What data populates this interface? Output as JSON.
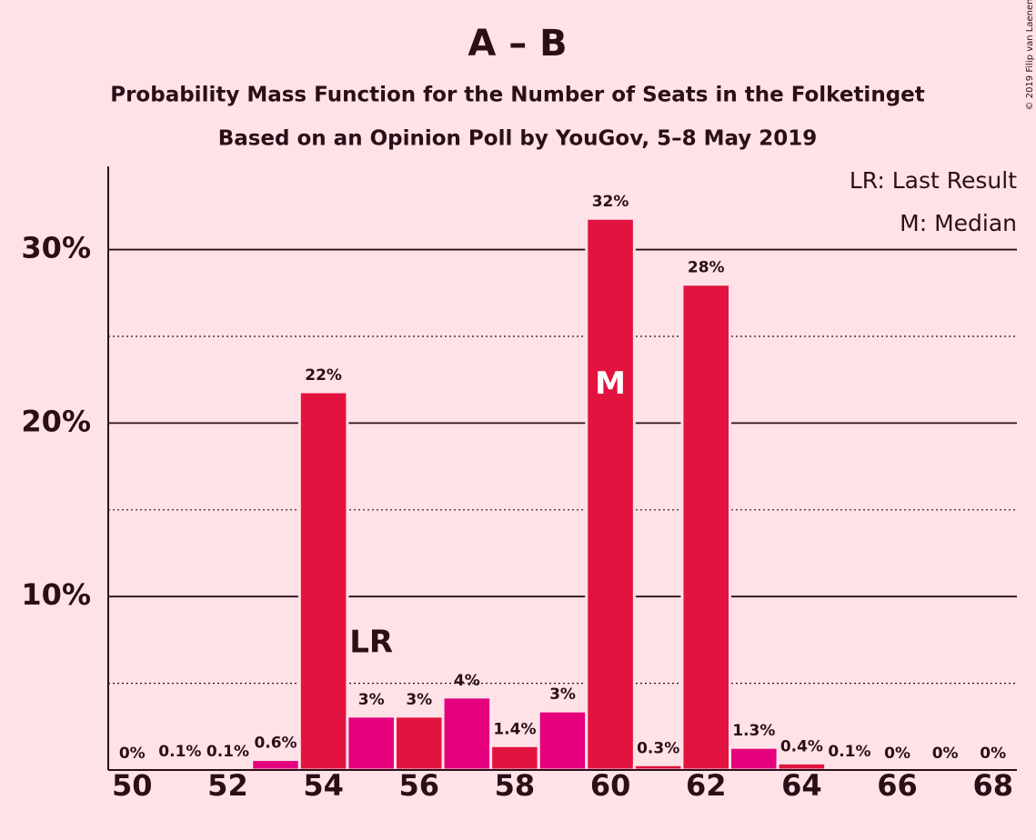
{
  "chart_data": {
    "type": "bar",
    "title": "A – B",
    "subtitle": "Probability Mass Function for the Number of Seats in the Folketinget",
    "subtitle2": "Based on an Opinion Poll by YouGov, 5–8 May 2019",
    "copyright": "© 2019 Filip van Laenen",
    "x": [
      50,
      51,
      52,
      53,
      54,
      55,
      56,
      57,
      58,
      59,
      60,
      61,
      62,
      63,
      64,
      65,
      66,
      67,
      68
    ],
    "values": [
      0,
      0.1,
      0.1,
      0.6,
      21.8,
      3.1,
      3.1,
      4.2,
      1.4,
      3.4,
      31.8,
      0.3,
      28.0,
      1.3,
      0.4,
      0.1,
      0,
      0,
      0
    ],
    "value_labels": [
      "0%",
      "0.1%",
      "0.1%",
      "0.6%",
      "22%",
      "3%",
      "3%",
      "4%",
      "1.4%",
      "3%",
      "32%",
      "0.3%",
      "28%",
      "1.3%",
      "0.4%",
      "0.1%",
      "0%",
      "0%",
      "0%"
    ],
    "colors": [
      "#e3133f",
      "#e5007e",
      "#e3133f",
      "#e5007e",
      "#e3133f",
      "#e5007e",
      "#e3133f",
      "#e5007e",
      "#e3133f",
      "#e5007e",
      "#e3133f",
      "#e3133f",
      "#e3133f",
      "#e5007e",
      "#e3133f",
      "#e5007e",
      "#e3133f",
      "#e5007e",
      "#e3133f"
    ],
    "xlim": [
      49.5,
      68.5
    ],
    "xticks": [
      50,
      52,
      54,
      56,
      58,
      60,
      62,
      64,
      66,
      68
    ],
    "ylim": [
      0,
      34.8
    ],
    "yticks": [
      {
        "value": 10,
        "label": "10%"
      },
      {
        "value": 20,
        "label": "20%"
      },
      {
        "value": 30,
        "label": "30%"
      }
    ],
    "minor_grid": [
      5,
      15,
      25
    ],
    "grid": true,
    "annotations": [
      {
        "label": "LR",
        "x": 55
      },
      {
        "label": "M",
        "x": 60
      }
    ],
    "legend": [
      "LR: Last Result",
      "M: Median"
    ]
  }
}
